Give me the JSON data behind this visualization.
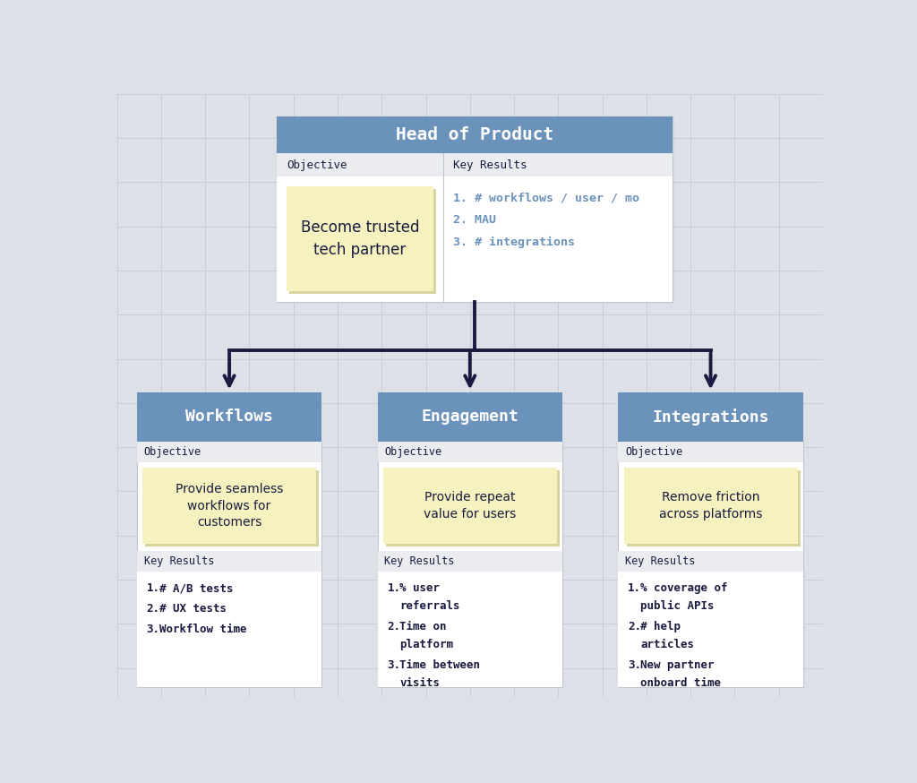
{
  "background_color": "#dde0e6",
  "grid_color": "#c8ccd4",
  "blue_color": "#6b92bb",
  "sticky_color": "#f5f2c0",
  "sticky_shadow": "#e8e4a0",
  "white_color": "#ffffff",
  "light_gray": "#eaecf0",
  "arrow_color": "#1a1a40",
  "text_dark": "#1a1a40",
  "text_mono_blue": "#6b92bb",
  "border_color": "#c0c4cc",
  "title": "Head of Product",
  "top_objective_label": "Objective",
  "top_key_results_label": "Key Results",
  "top_objective_text": "Become trusted\ntech partner",
  "top_key_results": [
    "# workflows / user / mo",
    "MAU",
    "# integrations"
  ],
  "children": [
    {
      "title": "Workflows",
      "objective_label": "Objective",
      "objective_text": "Provide seamless\nworkflows for\ncustomers",
      "key_results_label": "Key Results",
      "key_results": [
        "# A/B tests",
        "# UX tests",
        "Workflow time"
      ]
    },
    {
      "title": "Engagement",
      "objective_label": "Objective",
      "objective_text": "Provide repeat\nvalue for users",
      "key_results_label": "Key Results",
      "key_results": [
        "% user\nreferrals",
        "Time on\nplatform",
        "Time between\nvisits"
      ]
    },
    {
      "title": "Integrations",
      "objective_label": "Objective",
      "objective_text": "Remove friction\nacross platforms",
      "key_results_label": "Key Results",
      "key_results": [
        "% coverage of\npublic APIs",
        "# help\narticles",
        "New partner\nonboard time"
      ]
    }
  ]
}
